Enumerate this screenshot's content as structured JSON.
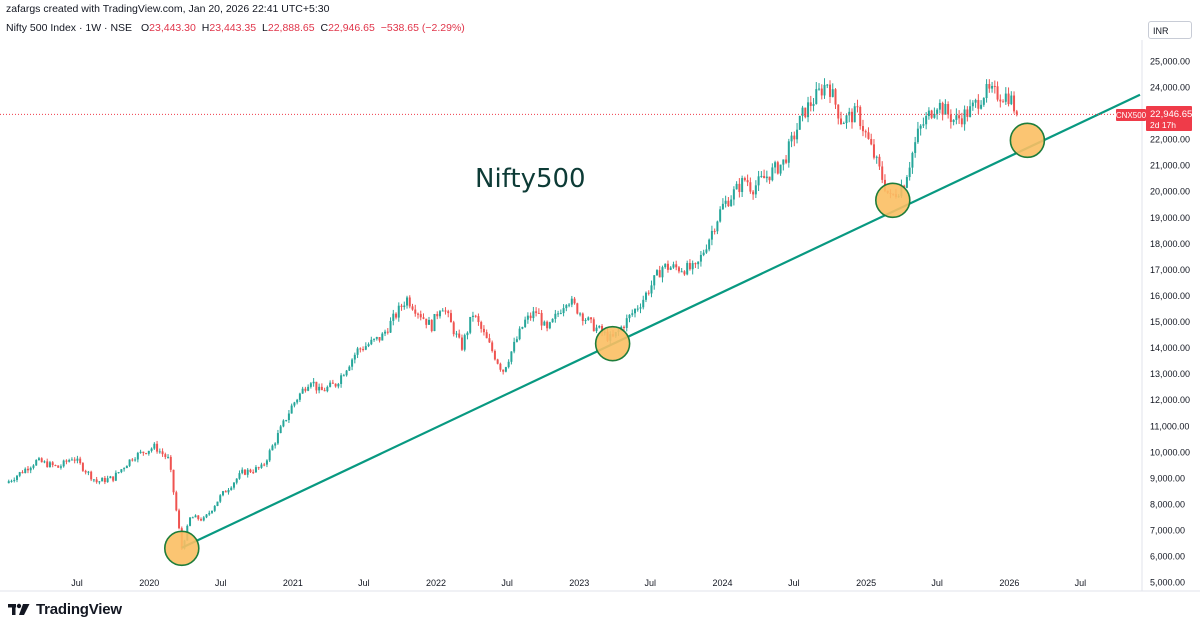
{
  "header": {
    "note": "zafargs created with TradingView.com, Jan 20, 2026 22:41 UTC+5:30",
    "instrument": "Nifty 500 Index · 1W · NSE",
    "o_label": "O",
    "o_value": "23,443.30",
    "h_label": "H",
    "h_value": "23,443.35",
    "l_label": "L",
    "l_value": "22,888.65",
    "c_label": "C",
    "c_value": "22,946.65",
    "change": "−538.65 (−2.29%)",
    "currency": "INR"
  },
  "annotation_text": "Nifty500",
  "price_tag": {
    "symbol": "CNX500",
    "price": "22,946.65",
    "countdown": "2d 17h"
  },
  "footer": {
    "brand": "TradingView"
  },
  "colors": {
    "up": "#26a69a",
    "down": "#ef5350",
    "trendline": "#089981",
    "circle_fill": "#fbbf63",
    "circle_stroke": "#1e7d3b",
    "price_tag": "#ef3b49",
    "axis_text": "#131722",
    "annotation": "#0d3b36"
  },
  "chart_data": {
    "type": "candlestick",
    "timeframe": "1W",
    "currency": "INR",
    "y_ticks": [
      5000,
      6000,
      7000,
      8000,
      9000,
      10000,
      11000,
      12000,
      13000,
      14000,
      15000,
      16000,
      17000,
      18000,
      19000,
      20000,
      21000,
      22000,
      23000,
      24000,
      25000
    ],
    "y_tick_labels": [
      "5,000.00",
      "6,000.00",
      "7,000.00",
      "8,000.00",
      "9,000.00",
      "10,000.00",
      "11,000.00",
      "12,000.00",
      "13,000.00",
      "14,000.00",
      "15,000.00",
      "16,000.00",
      "17,000.00",
      "18,000.00",
      "19,000.00",
      "20,000.00",
      "21,000.00",
      "22,000.00",
      "23,000.00",
      "24,000.00",
      "25,000.00"
    ],
    "ylim": [
      4700,
      25800
    ],
    "x_range": [
      "2019-01-01",
      "2026-11-30"
    ],
    "x_ticks": [
      {
        "label": "Jul",
        "date": "2019-07-01"
      },
      {
        "label": "2020",
        "date": "2020-01-01"
      },
      {
        "label": "Jul",
        "date": "2020-07-01"
      },
      {
        "label": "2021",
        "date": "2021-01-01"
      },
      {
        "label": "Jul",
        "date": "2021-07-01"
      },
      {
        "label": "2022",
        "date": "2022-01-01"
      },
      {
        "label": "Jul",
        "date": "2022-07-01"
      },
      {
        "label": "2023",
        "date": "2023-01-01"
      },
      {
        "label": "Jul",
        "date": "2023-07-01"
      },
      {
        "label": "2024",
        "date": "2024-01-01"
      },
      {
        "label": "Jul",
        "date": "2024-07-01"
      },
      {
        "label": "2025",
        "date": "2025-01-01"
      },
      {
        "label": "Jul",
        "date": "2025-07-01"
      },
      {
        "label": "2026",
        "date": "2026-01-01"
      },
      {
        "label": "Jul",
        "date": "2026-07-01"
      }
    ],
    "last_close": 22946.65,
    "price_path": [
      [
        "2019-01-01",
        8800
      ],
      [
        "2019-03-20",
        9650
      ],
      [
        "2019-05-15",
        9400
      ],
      [
        "2019-06-20",
        9800
      ],
      [
        "2019-08-20",
        8850
      ],
      [
        "2019-10-01",
        9000
      ],
      [
        "2019-11-20",
        9800
      ],
      [
        "2020-01-15",
        10200
      ],
      [
        "2020-02-20",
        9700
      ],
      [
        "2020-03-24",
        6300
      ],
      [
        "2020-04-15",
        7500
      ],
      [
        "2020-05-20",
        7400
      ],
      [
        "2020-07-01",
        8300
      ],
      [
        "2020-08-25",
        9200
      ],
      [
        "2020-10-15",
        9400
      ],
      [
        "2020-12-31",
        11800
      ],
      [
        "2021-02-15",
        12800
      ],
      [
        "2021-03-10",
        12300
      ],
      [
        "2021-04-20",
        12600
      ],
      [
        "2021-06-15",
        13900
      ],
      [
        "2021-08-15",
        14400
      ],
      [
        "2021-10-18",
        15900
      ],
      [
        "2021-12-20",
        14800
      ],
      [
        "2022-01-15",
        15700
      ],
      [
        "2022-03-07",
        14000
      ],
      [
        "2022-04-05",
        15300
      ],
      [
        "2022-06-20",
        13100
      ],
      [
        "2022-08-15",
        15000
      ],
      [
        "2022-09-15",
        15400
      ],
      [
        "2022-10-10",
        14600
      ],
      [
        "2022-12-01",
        15900
      ],
      [
        "2023-01-30",
        14900
      ],
      [
        "2023-03-25",
        14300
      ],
      [
        "2023-06-10",
        15800
      ],
      [
        "2023-08-01",
        17100
      ],
      [
        "2023-10-25",
        17000
      ],
      [
        "2023-12-31",
        19400
      ],
      [
        "2024-03-01",
        20500
      ],
      [
        "2024-03-15",
        20100
      ],
      [
        "2024-06-04",
        21100
      ],
      [
        "2024-07-25",
        23000
      ],
      [
        "2024-09-25",
        24200
      ],
      [
        "2024-10-30",
        22700
      ],
      [
        "2024-12-10",
        23000
      ],
      [
        "2025-01-25",
        21200
      ],
      [
        "2025-03-03",
        19700
      ],
      [
        "2025-04-07",
        20300
      ],
      [
        "2025-05-15",
        22300
      ],
      [
        "2025-06-30",
        23400
      ],
      [
        "2025-08-15",
        22700
      ],
      [
        "2025-09-25",
        23100
      ],
      [
        "2025-10-30",
        23800
      ],
      [
        "2025-12-10",
        23700
      ],
      [
        "2026-01-02",
        23650
      ],
      [
        "2026-01-20",
        22946.65
      ]
    ],
    "trendline": {
      "start": [
        "2020-03-24",
        6320
      ],
      "end": [
        "2026-11-30",
        23700
      ]
    },
    "highlight_points": [
      [
        "2020-03-24",
        6300
      ],
      [
        "2023-03-27",
        14150
      ],
      [
        "2025-03-10",
        19650
      ],
      [
        "2026-02-16",
        21950
      ]
    ]
  }
}
